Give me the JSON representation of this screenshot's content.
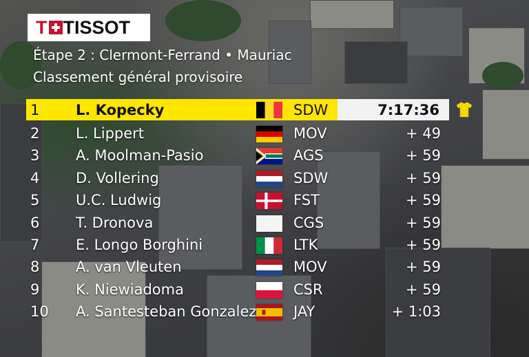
{
  "brand": {
    "logo_text": "TISSOT"
  },
  "header": {
    "stage": "Étape 2 : Clermont-Ferrand • Mauriac",
    "classification": "Classement général provisoire"
  },
  "leader": {
    "position": "1",
    "name": "L. Kopecky",
    "flag": "belgium-flag",
    "team": "SDW",
    "time": "7:17:36",
    "jersey": "yellow-jersey-icon"
  },
  "rows": [
    {
      "position": "2",
      "name": "L. Lippert",
      "flag": "germany-flag",
      "team": "MOV",
      "gap": "+ 49"
    },
    {
      "position": "3",
      "name": "A. Moolman-Pasio",
      "flag": "south-africa-flag",
      "team": "AGS",
      "gap": "+ 59"
    },
    {
      "position": "4",
      "name": "D. Vollering",
      "flag": "netherlands-flag",
      "team": "SDW",
      "gap": "+ 59"
    },
    {
      "position": "5",
      "name": "U.C. Ludwig",
      "flag": "denmark-flag",
      "team": "FST",
      "gap": "+ 59"
    },
    {
      "position": "6",
      "name": "T. Dronova",
      "flag": "white-flag",
      "team": "CGS",
      "gap": "+ 59"
    },
    {
      "position": "7",
      "name": "E. Longo Borghini",
      "flag": "italy-flag",
      "team": "LTK",
      "gap": "+ 59"
    },
    {
      "position": "8",
      "name": "A. van Vleuten",
      "flag": "netherlands-flag",
      "team": "MOV",
      "gap": "+ 59"
    },
    {
      "position": "9",
      "name": "K. Niewiadoma",
      "flag": "poland-flag",
      "team": "CSR",
      "gap": "+ 59"
    },
    {
      "position": "10",
      "name": "A. Santesteban Gonzalez",
      "flag": "spain-flag",
      "team": "JAY",
      "gap": "+ 1:03"
    }
  ],
  "colors": {
    "leader_bar": "#ffe600",
    "time_box": "#f2f2f2",
    "brand_red": "#c8102e"
  }
}
